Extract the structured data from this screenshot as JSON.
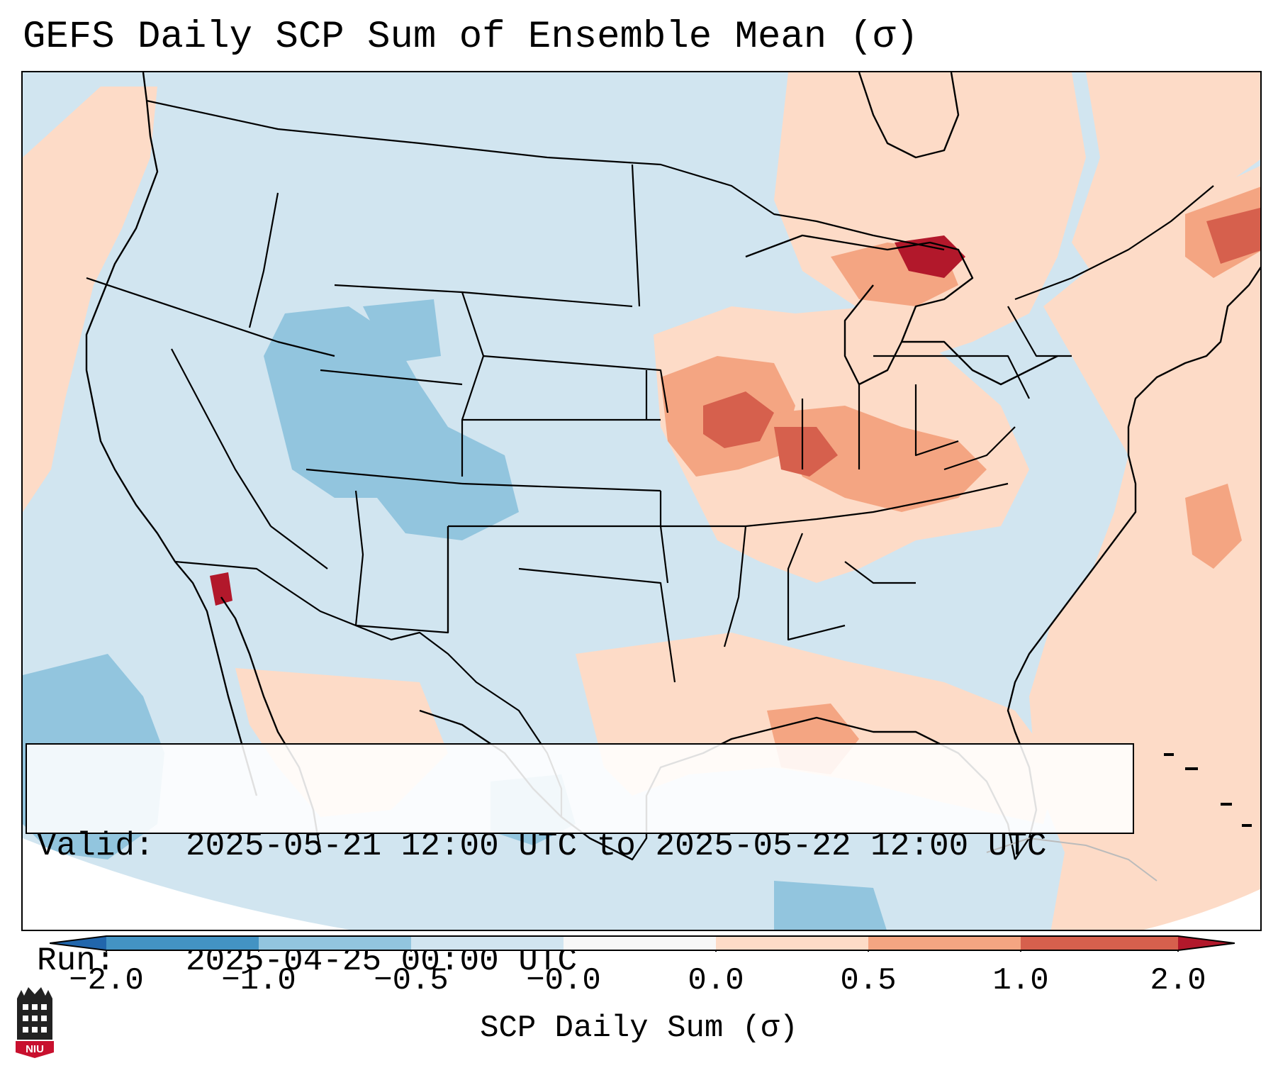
{
  "title": "GEFS Daily SCP Sum of Ensemble Mean (σ)",
  "info_box": {
    "valid_key": "Valid:",
    "valid_value": "2025-05-21 12:00 UTC to 2025-05-22 12:00 UTC",
    "run_key": "Run:",
    "run_value": "2025-04-25 00:00 UTC"
  },
  "colorbar": {
    "label": "SCP Daily Sum (σ)",
    "ticks": [
      "−2.0",
      "−1.0",
      "−0.5",
      "−0.0",
      "0.0",
      "0.5",
      "1.0",
      "2.0"
    ],
    "bins": [
      {
        "color": "#2166ac"
      },
      {
        "color": "#4393c3"
      },
      {
        "color": "#92c5de"
      },
      {
        "color": "#d1e5f0"
      },
      {
        "color": "#f7f7f7"
      },
      {
        "color": "#fddbc7"
      },
      {
        "color": "#f4a582"
      },
      {
        "color": "#d6604d"
      },
      {
        "color": "#b2182b"
      }
    ]
  },
  "map": {
    "region": "Contiguous United States",
    "background_color": "#d1e5f0",
    "highlights": [
      {
        "area": "Upper Midwest / Iowa",
        "level": 1.0
      },
      {
        "area": "Michigan Upper Peninsula",
        "level": 2.0
      },
      {
        "area": "Illinois / Indiana / Ohio",
        "level": 1.0
      },
      {
        "area": "Southern California",
        "level": 2.0
      },
      {
        "area": "Colorado Rockies",
        "level": -1.0
      },
      {
        "area": "Gulf Coast",
        "level": 0.5
      },
      {
        "area": "Atlantic Ocean",
        "level": 0.5
      }
    ]
  },
  "logo": {
    "text": "NIU",
    "color": "#c8102e"
  }
}
